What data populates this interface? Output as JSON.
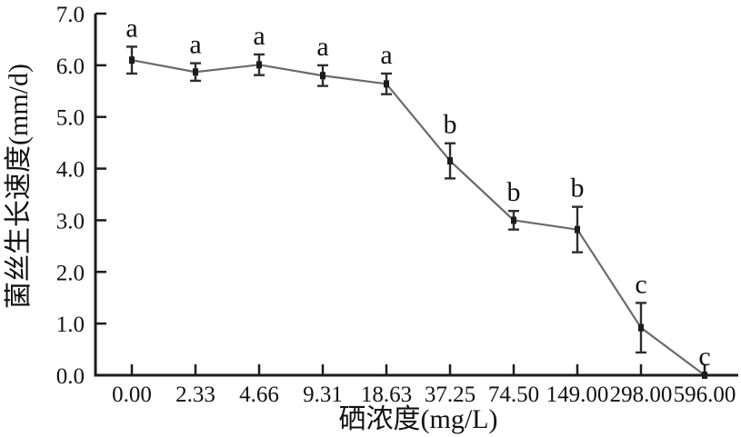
{
  "figure": {
    "background": "#ffffff",
    "axis_color": "#1c1c1c",
    "line_color": "#6a6a6a",
    "marker_color": "#1c1c1c",
    "error_bar_color": "#2e2e2e",
    "text_color": "#111111"
  },
  "chart_data": {
    "type": "line",
    "title": "",
    "xlabel": "硒浓度(mg/L)",
    "ylabel": "菌丝生长速度(mm/d)",
    "categories": [
      "0.00",
      "2.33",
      "4.66",
      "9.31",
      "18.63",
      "37.25",
      "74.50",
      "149.00",
      "298.00",
      "596.00"
    ],
    "values": [
      6.1,
      5.87,
      6.01,
      5.8,
      5.64,
      4.15,
      3.0,
      2.82,
      0.92,
      0.0
    ],
    "error_bars": [
      0.26,
      0.17,
      0.2,
      0.2,
      0.2,
      0.34,
      0.18,
      0.44,
      0.48,
      0
    ],
    "point_labels": [
      "a",
      "a",
      "a",
      "a",
      "a",
      "b",
      "b",
      "b",
      "c",
      "c"
    ],
    "ylim": [
      0.0,
      7.0
    ],
    "ytick_labels": [
      "0.0",
      "1.0",
      "2.0",
      "3.0",
      "4.0",
      "5.0",
      "6.0",
      "7.0"
    ],
    "grid": false,
    "legend": null,
    "marker_shape": "square",
    "series_name": "菌丝生长速度"
  }
}
